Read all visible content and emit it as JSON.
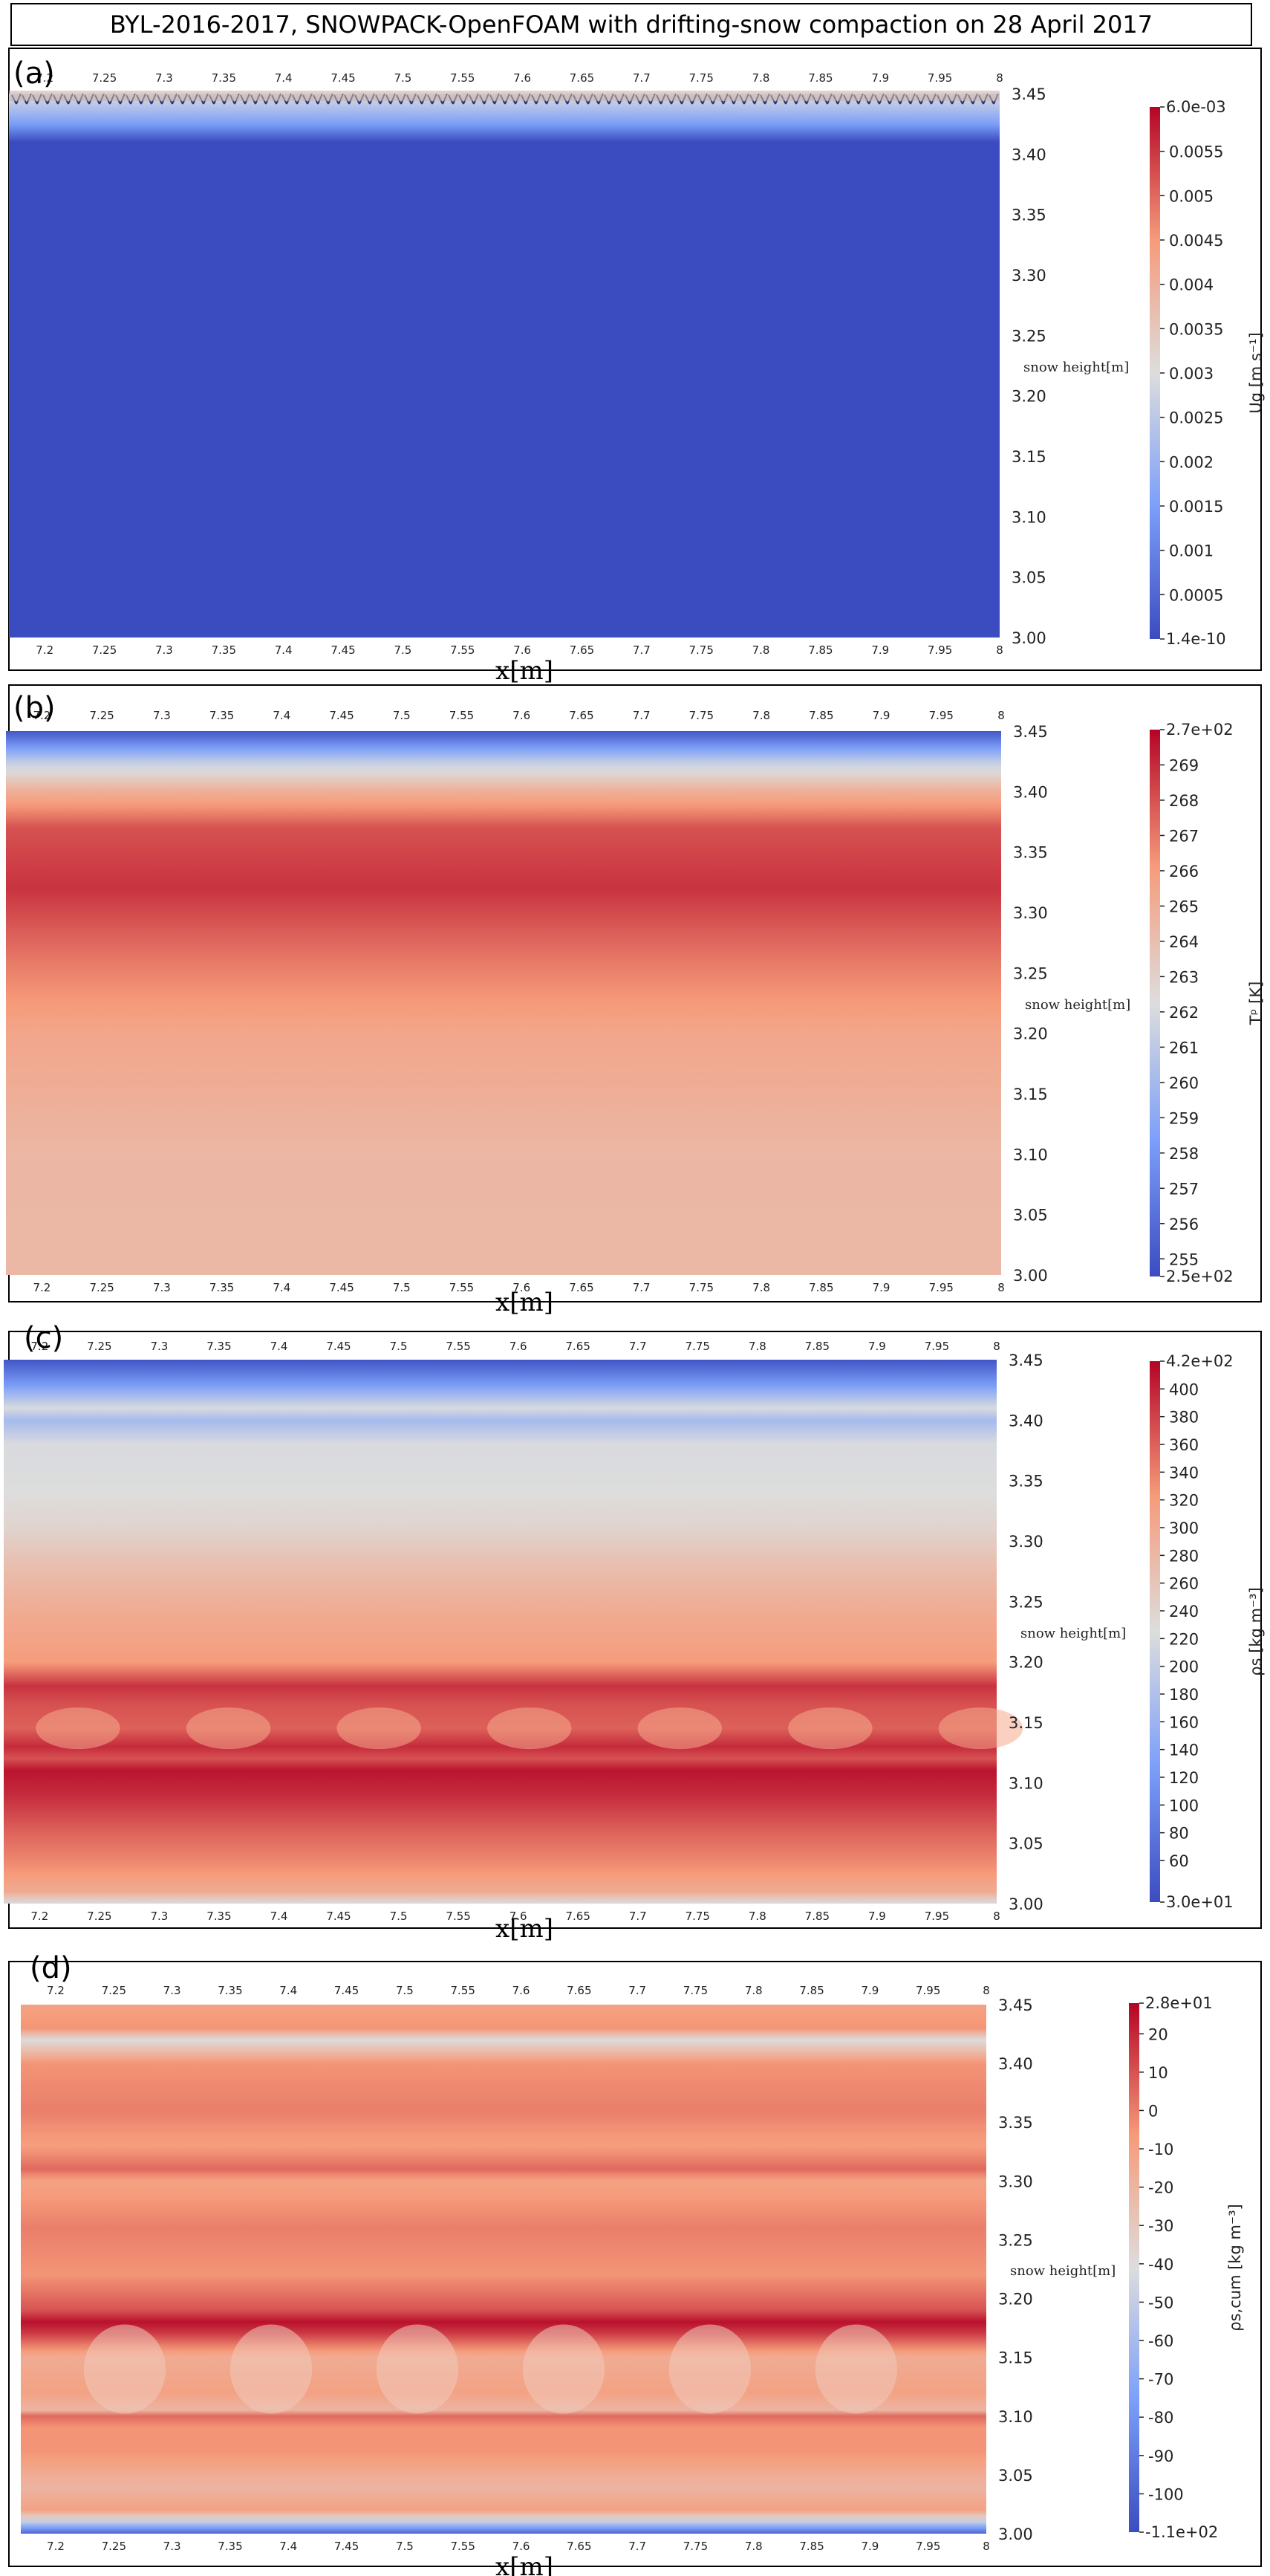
{
  "figure": {
    "title": "BYL-2016-2017, SNOWPACK-OpenFOAM with drifting-snow compaction on 28 April 2017"
  },
  "chart_data": [
    {
      "type": "heatmap",
      "panel_label": "(a)",
      "xlabel": "x[m]",
      "ylabel": "snow height[m]",
      "xlim": [
        7.17,
        8.0
      ],
      "ylim": [
        3.0,
        3.45
      ],
      "x_ticks": [
        "7.2",
        "7.25",
        "7.3",
        "7.35",
        "7.4",
        "7.45",
        "7.5",
        "7.55",
        "7.6",
        "7.65",
        "7.7",
        "7.75",
        "7.8",
        "7.85",
        "7.9",
        "7.95",
        "8"
      ],
      "y_ticks": [
        "3.45",
        "3.40",
        "3.35",
        "3.30",
        "3.25",
        "3.20",
        "3.15",
        "3.10",
        "3.05",
        "3.00"
      ],
      "colorbar": {
        "label": "Ug [m s⁻¹]",
        "min": 1.4e-10,
        "max": 0.006,
        "min_label": "1.4e-10",
        "max_label": "6.0e-03",
        "ticks": [
          0.0055,
          0.005,
          0.0045,
          0.004,
          0.0035,
          0.003,
          0.0025,
          0.002,
          0.0015,
          0.001,
          0.0005
        ],
        "tick_labels": [
          "0.0055",
          "0.005",
          "0.0045",
          "0.004",
          "0.0035",
          "0.003",
          "0.0025",
          "0.002",
          "0.0015",
          "0.001",
          "0.0005"
        ],
        "colormap": "cool-to-warm"
      },
      "field_profile": [
        [
          3.0,
          0.0
        ],
        [
          3.41,
          0.0
        ],
        [
          3.425,
          0.0015
        ],
        [
          3.45,
          0.003
        ]
      ],
      "surface_vectors": true
    },
    {
      "type": "heatmap",
      "panel_label": "(b)",
      "xlabel": "x[m]",
      "ylabel": "snow height[m]",
      "xlim": [
        7.17,
        8.0
      ],
      "ylim": [
        3.0,
        3.45
      ],
      "x_ticks": [
        "7.2",
        "7.25",
        "7.3",
        "7.35",
        "7.4",
        "7.45",
        "7.5",
        "7.55",
        "7.6",
        "7.65",
        "7.7",
        "7.75",
        "7.8",
        "7.85",
        "7.9",
        "7.95",
        "8"
      ],
      "y_ticks": [
        "3.45",
        "3.40",
        "3.35",
        "3.30",
        "3.25",
        "3.20",
        "3.15",
        "3.10",
        "3.05",
        "3.00"
      ],
      "colorbar": {
        "label": "Tᵖ [K]",
        "min": 254.5,
        "max": 270,
        "min_label": "2.5e+02",
        "max_label": "2.7e+02",
        "ticks": [
          269,
          268,
          267,
          266,
          265,
          264,
          263,
          262,
          261,
          260,
          259,
          258,
          257,
          256,
          255
        ],
        "tick_labels": [
          "269",
          "268",
          "267",
          "266",
          "265",
          "264",
          "263",
          "262",
          "261",
          "260",
          "259",
          "258",
          "257",
          "256",
          "255"
        ],
        "colormap": "cool-to-warm"
      },
      "field_profile": [
        [
          3.0,
          264.4
        ],
        [
          3.1,
          264.5
        ],
        [
          3.2,
          265.5
        ],
        [
          3.26,
          267
        ],
        [
          3.32,
          268.8
        ],
        [
          3.37,
          268
        ],
        [
          3.4,
          265
        ],
        [
          3.425,
          261
        ],
        [
          3.45,
          255
        ]
      ]
    },
    {
      "type": "heatmap",
      "panel_label": "(c)",
      "xlabel": "x[m]",
      "ylabel": "snow height[m]",
      "xlim": [
        7.17,
        8.0
      ],
      "ylim": [
        3.0,
        3.45
      ],
      "x_ticks": [
        "7.2",
        "7.25",
        "7.3",
        "7.35",
        "7.4",
        "7.45",
        "7.5",
        "7.55",
        "7.6",
        "7.65",
        "7.7",
        "7.75",
        "7.8",
        "7.85",
        "7.9",
        "7.95",
        "8"
      ],
      "y_ticks": [
        "3.45",
        "3.40",
        "3.35",
        "3.30",
        "3.25",
        "3.20",
        "3.15",
        "3.10",
        "3.05",
        "3.00"
      ],
      "colorbar": {
        "label": "ρs [kg m⁻³]",
        "min": 30,
        "max": 420,
        "min_label": "3.0e+01",
        "max_label": "4.2e+02",
        "ticks": [
          400,
          380,
          360,
          340,
          320,
          300,
          280,
          260,
          240,
          220,
          200,
          180,
          160,
          140,
          120,
          100,
          80,
          60
        ],
        "tick_labels": [
          "400",
          "380",
          "360",
          "340",
          "320",
          "300",
          "280",
          "260",
          "240",
          "220",
          "200",
          "180",
          "160",
          "140",
          "120",
          "100",
          "80",
          "60"
        ],
        "colormap": "cool-to-warm"
      },
      "field_profile": [
        [
          3.0,
          220
        ],
        [
          3.01,
          300
        ],
        [
          3.03,
          330
        ],
        [
          3.06,
          360
        ],
        [
          3.09,
          395
        ],
        [
          3.11,
          410
        ],
        [
          3.12,
          370
        ],
        [
          3.13,
          395
        ],
        [
          3.145,
          360
        ],
        [
          3.165,
          370
        ],
        [
          3.18,
          390
        ],
        [
          3.2,
          320
        ],
        [
          3.24,
          300
        ],
        [
          3.28,
          270
        ],
        [
          3.31,
          240
        ],
        [
          3.34,
          225
        ],
        [
          3.38,
          220
        ],
        [
          3.4,
          170
        ],
        [
          3.41,
          220
        ],
        [
          3.43,
          120
        ],
        [
          3.45,
          40
        ]
      ]
    },
    {
      "type": "heatmap",
      "panel_label": "(d)",
      "xlabel": "x[m]",
      "ylabel": "snow height[m]",
      "xlim": [
        7.17,
        8.0
      ],
      "ylim": [
        3.0,
        3.45
      ],
      "x_ticks": [
        "7.2",
        "7.25",
        "7.3",
        "7.35",
        "7.4",
        "7.45",
        "7.5",
        "7.55",
        "7.6",
        "7.65",
        "7.7",
        "7.75",
        "7.8",
        "7.85",
        "7.9",
        "7.95",
        "8"
      ],
      "y_ticks": [
        "3.45",
        "3.40",
        "3.35",
        "3.30",
        "3.25",
        "3.20",
        "3.15",
        "3.10",
        "3.05",
        "3.00"
      ],
      "colorbar": {
        "label": "ρs,cum [kg m⁻³]",
        "min": -110,
        "max": 28,
        "min_label": "-1.1e+02",
        "max_label": "2.8e+01",
        "ticks": [
          20,
          10,
          0,
          -10,
          -20,
          -30,
          -40,
          -50,
          -60,
          -70,
          -80,
          -90,
          -100
        ],
        "tick_labels": [
          "20",
          "10",
          "0",
          "-10",
          "-20",
          "-30",
          "-40",
          "-50",
          "-60",
          "-70",
          "-80",
          "-90",
          "-100"
        ],
        "colormap": "cool-to-warm"
      },
      "field_profile": [
        [
          3.0,
          -100
        ],
        [
          3.01,
          -50
        ],
        [
          3.02,
          -10
        ],
        [
          3.04,
          -20
        ],
        [
          3.07,
          -5
        ],
        [
          3.09,
          -5
        ],
        [
          3.1,
          5
        ],
        [
          3.105,
          -20
        ],
        [
          3.12,
          -10
        ],
        [
          3.15,
          -15
        ],
        [
          3.17,
          15
        ],
        [
          3.18,
          25
        ],
        [
          3.19,
          10
        ],
        [
          3.22,
          -5
        ],
        [
          3.26,
          0
        ],
        [
          3.3,
          -10
        ],
        [
          3.31,
          5
        ],
        [
          3.33,
          -8
        ],
        [
          3.36,
          0
        ],
        [
          3.4,
          -5
        ],
        [
          3.42,
          -40
        ],
        [
          3.43,
          -5
        ],
        [
          3.45,
          -10
        ]
      ]
    }
  ]
}
